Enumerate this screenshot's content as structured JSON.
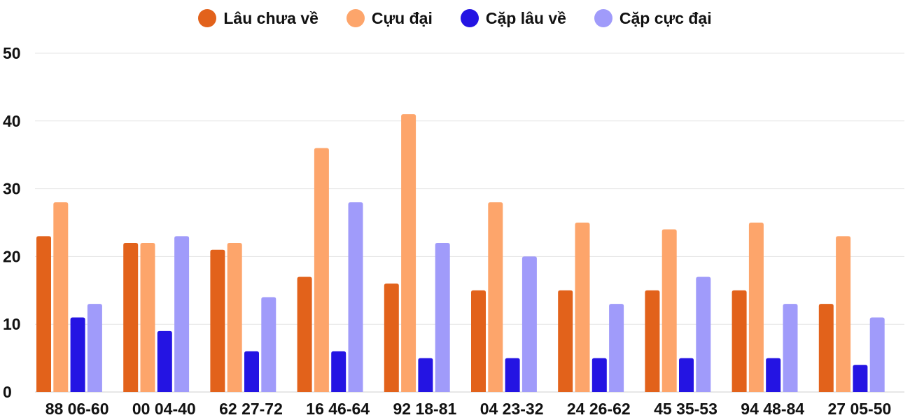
{
  "chart_data": {
    "type": "bar",
    "categories": [
      "88 06-60",
      "00 04-40",
      "62 27-72",
      "16 46-64",
      "92 18-81",
      "04 23-32",
      "24 26-62",
      "45 35-53",
      "94 48-84",
      "27 05-50"
    ],
    "series": [
      {
        "name": "Lâu chưa về",
        "color": "#e2621b",
        "values": [
          23,
          22,
          21,
          17,
          16,
          15,
          15,
          15,
          15,
          13
        ]
      },
      {
        "name": "Cựu đại",
        "color": "#fda56b",
        "values": [
          28,
          22,
          22,
          36,
          41,
          28,
          25,
          24,
          25,
          23
        ]
      },
      {
        "name": "Cặp lâu về",
        "color": "#2414e3",
        "values": [
          11,
          9,
          6,
          6,
          5,
          5,
          5,
          5,
          5,
          4
        ]
      },
      {
        "name": "Cặp cực đại",
        "color": "#a09bfa",
        "values": [
          13,
          23,
          14,
          28,
          22,
          20,
          13,
          17,
          13,
          11
        ]
      }
    ],
    "y_ticks": [
      "0",
      "10",
      "20",
      "30",
      "40",
      "50"
    ],
    "ylim": [
      0,
      50
    ],
    "grid": true,
    "legend_position": "top-center",
    "title": "",
    "xlabel": "",
    "ylabel": ""
  }
}
